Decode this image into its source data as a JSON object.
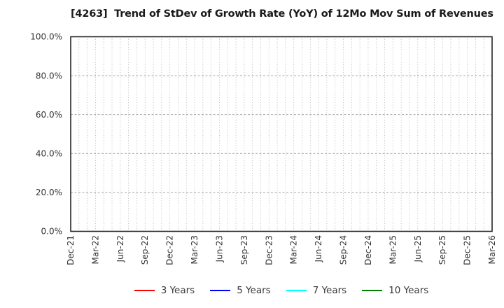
{
  "chart_data": {
    "type": "line",
    "title": "[4263]  Trend of StDev of Growth Rate (YoY) of 12Mo Mov Sum of Revenues",
    "xlabel": "",
    "ylabel": "",
    "x_tick_labels": [
      "Dec-21",
      "Mar-22",
      "Jun-22",
      "Sep-22",
      "Dec-22",
      "Mar-23",
      "Jun-23",
      "Sep-23",
      "Dec-23",
      "Mar-24",
      "Jun-24",
      "Sep-24",
      "Dec-24",
      "Mar-25",
      "Jun-25",
      "Sep-25",
      "Dec-25",
      "Mar-26"
    ],
    "x_minor_divisions_per_interval": 3,
    "y_tick_values": [
      0,
      20,
      40,
      60,
      80,
      100
    ],
    "y_tick_labels": [
      "0.0%",
      "20.0%",
      "40.0%",
      "60.0%",
      "80.0%",
      "100.0%"
    ],
    "ylim": [
      0,
      100
    ],
    "grid": true,
    "legend_position": "bottom",
    "series": [
      {
        "name": "3 Years",
        "color": "#ff0000",
        "values": []
      },
      {
        "name": "5 Years",
        "color": "#0000ff",
        "values": []
      },
      {
        "name": "7 Years",
        "color": "#00ffff",
        "values": []
      },
      {
        "name": "10 Years",
        "color": "#008000",
        "values": []
      }
    ],
    "plot_is_empty": true
  },
  "colors": {
    "frame": "#262626",
    "grid": "#a0a0a0",
    "tick_text": "#333333",
    "title_text": "#1a1a1a",
    "background": "#ffffff"
  }
}
